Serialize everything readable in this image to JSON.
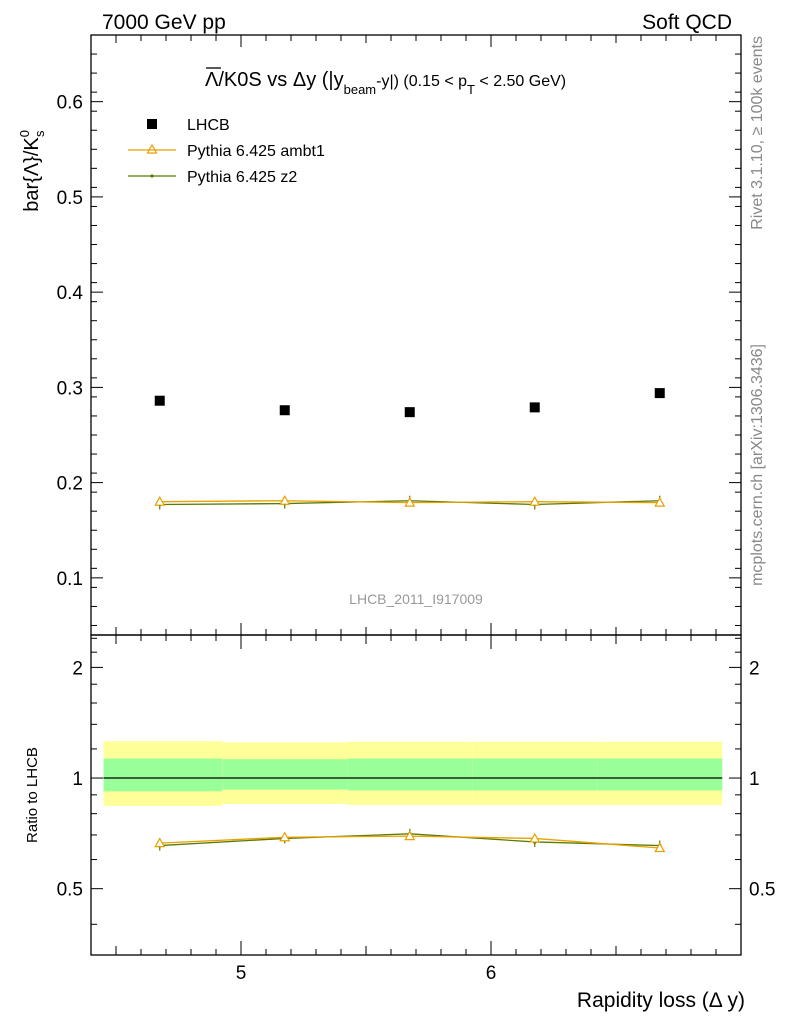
{
  "header": {
    "left": "7000 GeV pp",
    "right": "Soft QCD"
  },
  "side_labels": {
    "rivet": "Rivet 3.1.10, ≥ 100k events",
    "mcplots": "mcplots.cern.ch [arXiv:1306.3436]"
  },
  "colors": {
    "lhcb": "#000000",
    "ambt1": "#e8a000",
    "z2": "#5a7a00",
    "band_outer": "#ffff99",
    "band_inner": "#99ff99"
  },
  "chart_data": [
    {
      "type": "scatter",
      "panel": "main",
      "title_parts": {
        "lambda": "Λ",
        "a": "/K0S vs Δy (|y",
        "sub1": "beam",
        "b": "-y|) (0.15 < p",
        "sub2": "T",
        "c": " < 2.50 GeV)"
      },
      "ylabel": "bar{Λ}/K",
      "ylabel_sub": "s",
      "ylabel_sup": "0",
      "xlim": [
        4.4,
        7.0
      ],
      "ylim": [
        0.04,
        0.67
      ],
      "yticks": [
        0.1,
        0.2,
        0.3,
        0.4,
        0.5,
        0.6
      ],
      "ytick_labels": [
        "0.1",
        "0.2",
        "0.3",
        "0.4",
        "0.5",
        "0.6"
      ],
      "watermark": "LHCB_2011_I917009",
      "legend_placement": "top-left",
      "x": [
        4.675,
        5.175,
        5.675,
        6.175,
        6.675
      ],
      "series": [
        {
          "name": "LHCB",
          "style": "marker",
          "values": [
            0.286,
            0.276,
            0.274,
            0.279,
            0.294
          ]
        },
        {
          "name": "Pythia 6.425 ambt1",
          "style": "line-triangle",
          "values": [
            0.18,
            0.181,
            0.179,
            0.18,
            0.179
          ]
        },
        {
          "name": "Pythia 6.425 z2",
          "style": "line-dot",
          "values": [
            0.177,
            0.178,
            0.181,
            0.177,
            0.181
          ]
        }
      ]
    },
    {
      "type": "line",
      "panel": "ratio",
      "ylabel": "Ratio to LHCB",
      "xlabel": "Rapidity loss (Δ y)",
      "xlim": [
        4.4,
        7.0
      ],
      "ylim": [
        0.33,
        2.45
      ],
      "yticks": [
        0.5,
        1,
        2
      ],
      "ytick_labels": [
        "0.5",
        "1",
        "2"
      ],
      "xticks": [
        5,
        6
      ],
      "xtick_labels": [
        "5",
        "6"
      ],
      "x": [
        4.675,
        5.175,
        5.675,
        6.175,
        6.675
      ],
      "bins": [
        [
          4.45,
          4.925
        ],
        [
          4.925,
          5.425
        ],
        [
          5.425,
          5.925
        ],
        [
          5.925,
          6.425
        ],
        [
          6.425,
          6.925
        ]
      ],
      "band_outer": [
        [
          0.84,
          1.26
        ],
        [
          0.85,
          1.25
        ],
        [
          0.845,
          1.255
        ],
        [
          0.845,
          1.255
        ],
        [
          0.845,
          1.255
        ]
      ],
      "band_inner": [
        [
          0.92,
          1.13
        ],
        [
          0.93,
          1.125
        ],
        [
          0.925,
          1.13
        ],
        [
          0.925,
          1.13
        ],
        [
          0.925,
          1.13
        ]
      ],
      "series": [
        {
          "name": "Pythia 6.425 ambt1",
          "values": [
            0.665,
            0.69,
            0.695,
            0.685,
            0.645
          ]
        },
        {
          "name": "Pythia 6.425 z2",
          "values": [
            0.655,
            0.685,
            0.705,
            0.67,
            0.655
          ]
        }
      ]
    }
  ]
}
